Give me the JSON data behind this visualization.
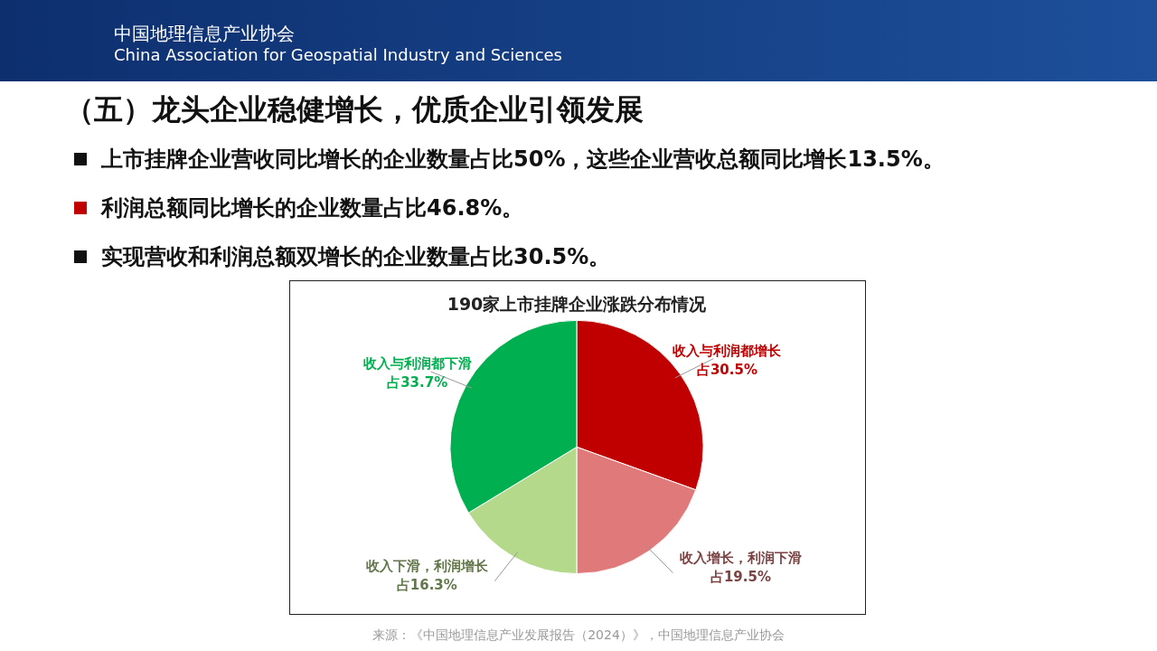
{
  "chart_data": {
    "type": "pie",
    "title": "190家上市挂牌企业涨跌分布情况",
    "categories": [
      "收入与利润都增长",
      "收入增长，利润下滑",
      "收入下滑，利润增长",
      "收入与利润都下滑"
    ],
    "values": [
      30.5,
      19.5,
      16.3,
      33.7
    ],
    "value_labels": [
      "占30.5%",
      "占19.5%",
      "占16.3%",
      "占33.7%"
    ],
    "colors": [
      "#c00000",
      "#e07a7a",
      "#b5d98a",
      "#00b050"
    ],
    "legend": false,
    "annotations": [
      "中国地理信息产业协会",
      "China Association for Geospatial Industry and Sciences",
      "（五）龙头企业稳健增长，优质企业引领发展",
      "上市挂牌企业营收同比增长的企业数量占比50%，这些企业营收总额同比增长13.5%。",
      "利润总额同比增长的企业数量占比46.8%。",
      "实现营收和利润总额双增长的企业数量占比30.5%。",
      "来源：《中国地理信息产业发展报告（2024）》，中国地理信息产业协会"
    ]
  }
}
